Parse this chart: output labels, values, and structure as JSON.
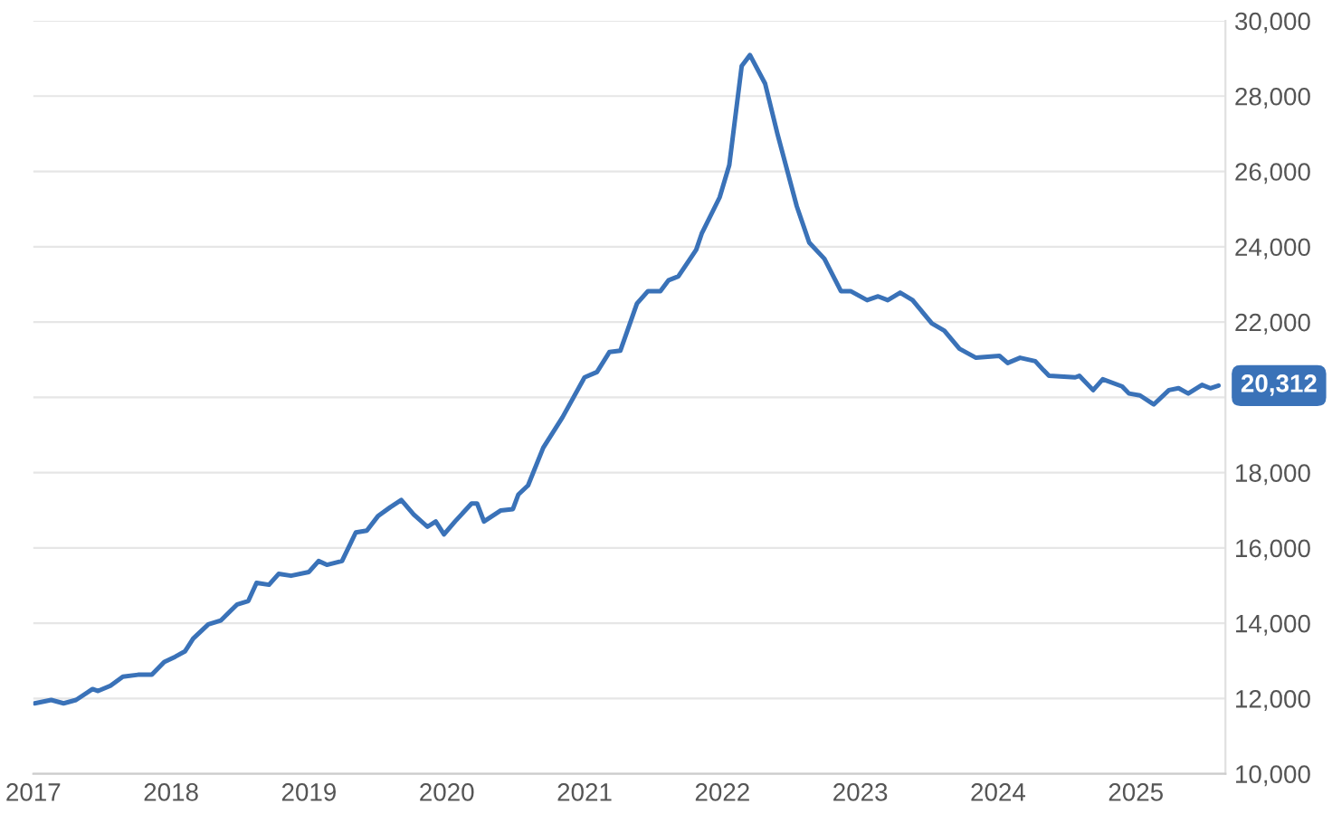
{
  "chart_data": {
    "type": "line",
    "x": [
      2017.01,
      2017.13,
      2017.22,
      2017.31,
      2017.43,
      2017.47,
      2017.56,
      2017.65,
      2017.76,
      2017.86,
      2017.95,
      2018.03,
      2018.1,
      2018.16,
      2018.27,
      2018.36,
      2018.48,
      2018.56,
      2018.62,
      2018.71,
      2018.78,
      2018.87,
      2019.0,
      2019.07,
      2019.13,
      2019.24,
      2019.34,
      2019.42,
      2019.5,
      2019.59,
      2019.67,
      2019.76,
      2019.86,
      2019.92,
      2019.98,
      2020.06,
      2020.18,
      2020.22,
      2020.27,
      2020.39,
      2020.48,
      2020.52,
      2020.59,
      2020.7,
      2020.84,
      2021.0,
      2021.09,
      2021.18,
      2021.26,
      2021.38,
      2021.46,
      2021.55,
      2021.61,
      2021.68,
      2021.81,
      2021.85,
      2021.98,
      2022.05,
      2022.14,
      2022.2,
      2022.31,
      2022.4,
      2022.54,
      2022.63,
      2022.74,
      2022.86,
      2022.93,
      2023.05,
      2023.13,
      2023.2,
      2023.29,
      2023.38,
      2023.52,
      2023.61,
      2023.72,
      2023.84,
      2024.01,
      2024.07,
      2024.16,
      2024.27,
      2024.33,
      2024.37,
      2024.56,
      2024.59,
      2024.69,
      2024.76,
      2024.9,
      2024.95,
      2025.03,
      2025.13,
      2025.24,
      2025.31,
      2025.38,
      2025.48,
      2025.54,
      2025.6
    ],
    "series": [
      {
        "color": "#3a72b8",
        "values": [
          11870,
          11960,
          11870,
          11960,
          12250,
          12200,
          12340,
          12580,
          12630,
          12630,
          12970,
          13110,
          13250,
          13590,
          13970,
          14070,
          14500,
          14590,
          15070,
          15020,
          15310,
          15260,
          15360,
          15650,
          15550,
          15650,
          16410,
          16460,
          16840,
          17080,
          17270,
          16890,
          16560,
          16700,
          16360,
          16700,
          17180,
          17180,
          16700,
          16990,
          17030,
          17420,
          17660,
          18660,
          19470,
          20530,
          20670,
          21200,
          21240,
          22490,
          22820,
          22820,
          23110,
          23210,
          23920,
          24350,
          25310,
          26170,
          28800,
          29090,
          28330,
          26990,
          25070,
          24110,
          23680,
          22820,
          22820,
          22580,
          22680,
          22580,
          22780,
          22580,
          21960,
          21770,
          21290,
          21050,
          21100,
          20910,
          21050,
          20960,
          20720,
          20570,
          20530,
          20570,
          20190,
          20480,
          20290,
          20100,
          20050,
          19810,
          20190,
          20240,
          20100,
          20330,
          20240,
          20312
        ],
        "value_labels": [
          null,
          null,
          null,
          null,
          null,
          null,
          null,
          null,
          null,
          null,
          null,
          null,
          null,
          null,
          null,
          null,
          null,
          null,
          null,
          null,
          null,
          null,
          null,
          null,
          null,
          null,
          null,
          null,
          null,
          null,
          null,
          null,
          null,
          null,
          null,
          null,
          null,
          null,
          null,
          null,
          null,
          null,
          null,
          null,
          null,
          null,
          null,
          null,
          null,
          null,
          null,
          null,
          null,
          null,
          null,
          null,
          null,
          null,
          null,
          null,
          null,
          null,
          null,
          null,
          null,
          null,
          null,
          null,
          null,
          null,
          null,
          null,
          null,
          null,
          null,
          null,
          null,
          null,
          null,
          null,
          null,
          null,
          null,
          null,
          null,
          null,
          null,
          null,
          null,
          null,
          null,
          null,
          null,
          null,
          null,
          "20,312"
        ]
      }
    ],
    "xlim": [
      2017,
      2025.65
    ],
    "xticks": [
      2017,
      2018,
      2019,
      2020,
      2021,
      2022,
      2023,
      2024,
      2025
    ],
    "ylim": [
      10000,
      30000
    ],
    "yticks": [
      {
        "value": 10000,
        "label": "10,000"
      },
      {
        "value": 12000,
        "label": "12,000"
      },
      {
        "value": 14000,
        "label": "14,000"
      },
      {
        "value": 16000,
        "label": "16,000"
      },
      {
        "value": 18000,
        "label": "18,000"
      },
      {
        "value": 20000,
        "label": null
      },
      {
        "value": 22000,
        "label": "22,000"
      },
      {
        "value": 24000,
        "label": "24,000"
      },
      {
        "value": 26000,
        "label": "26,000"
      },
      {
        "value": 28000,
        "label": "28,000"
      },
      {
        "value": 30000,
        "label": "30,000"
      }
    ],
    "grid": "y",
    "legend": false,
    "marker": "none",
    "line_style": "solid"
  }
}
